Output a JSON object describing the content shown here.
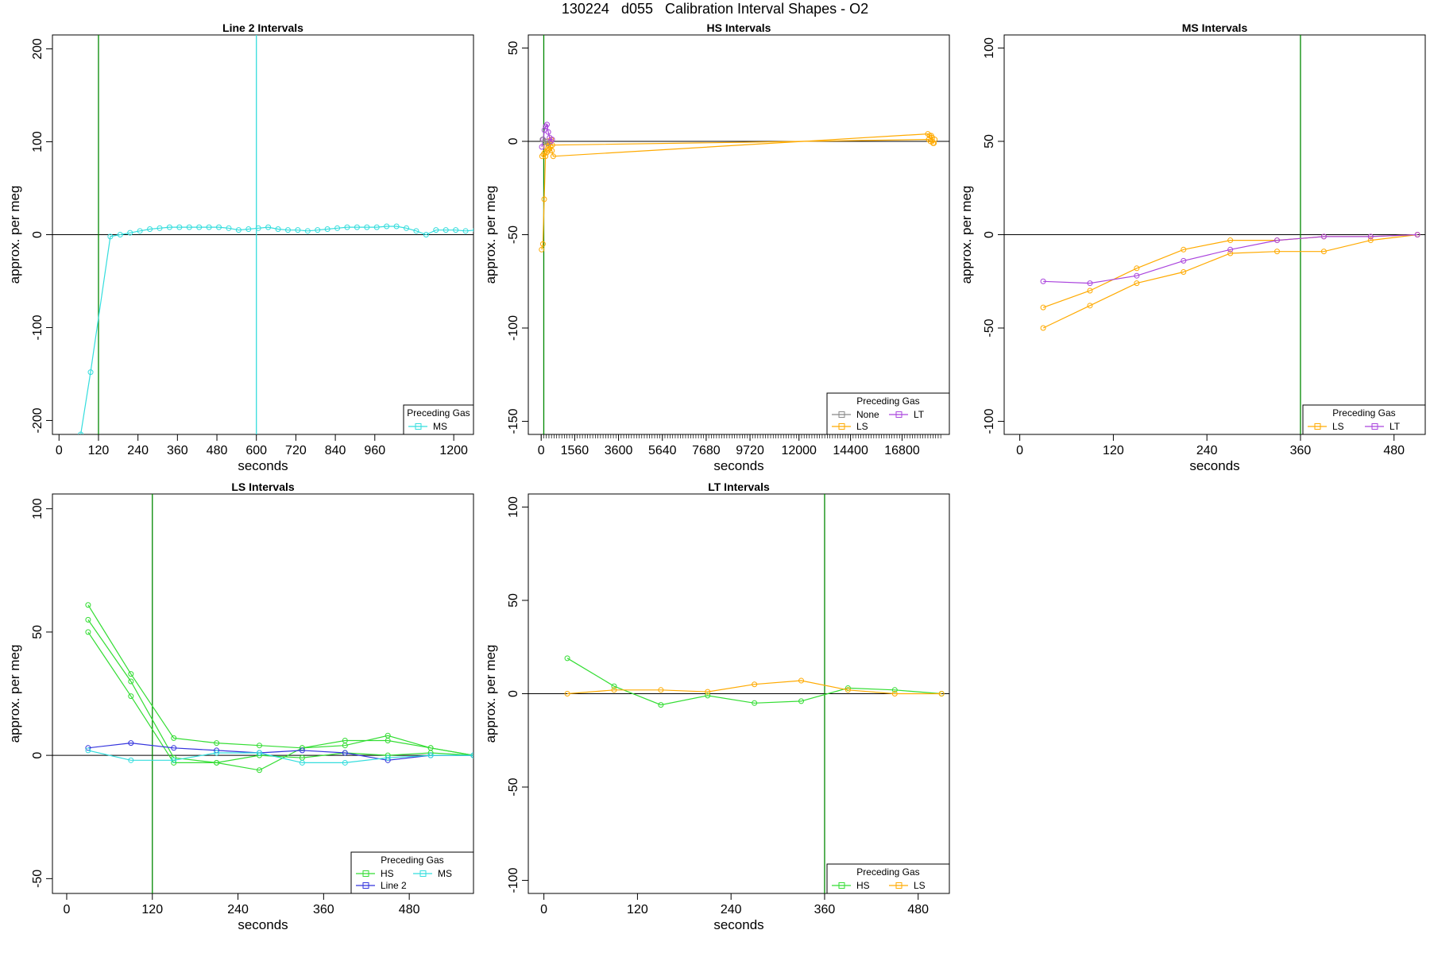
{
  "figure": {
    "title": "130224   d055   Calibration Interval Shapes - O2"
  },
  "colors": {
    "HS": "#33dd33",
    "LS": "#ffaa00",
    "LT": "#aa44dd",
    "MS": "#33dddd",
    "Line 2": "#3333dd",
    "None": "#888888",
    "axis": "#000000",
    "vline": "#008800"
  },
  "chart_data": [
    {
      "type": "line",
      "title": "Line 2 Intervals",
      "xlabel": "seconds",
      "ylabel": "approx. per meg",
      "xlim": [
        -20,
        1260
      ],
      "ylim": [
        -215,
        215
      ],
      "xticks": [
        0,
        120,
        240,
        360,
        480,
        600,
        720,
        840,
        960,
        1200
      ],
      "yticks": [
        -200,
        -100,
        0,
        100,
        200
      ],
      "hline": 0,
      "vlines": [
        {
          "x": 120,
          "color": "vline"
        },
        {
          "x": 600,
          "color": "MS"
        }
      ],
      "legend": {
        "title": "Preceding Gas",
        "position": "bottom-right",
        "columns": 1,
        "entries": [
          "MS"
        ]
      },
      "series": [
        {
          "name": "MS",
          "x": [
            66,
            96,
            156,
            186,
            216,
            246,
            276,
            306,
            336,
            366,
            396,
            426,
            456,
            486,
            516,
            546,
            576,
            606,
            636,
            666,
            696,
            726,
            756,
            786,
            816,
            846,
            876,
            906,
            936,
            966,
            996,
            1026,
            1056,
            1086,
            1116,
            1146,
            1176,
            1206,
            1236,
            1266
          ],
          "y": [
            -215,
            -148,
            -2,
            0,
            2,
            4,
            6,
            7,
            8,
            8,
            8,
            8,
            8,
            8,
            7,
            5,
            6,
            7,
            8,
            6,
            5,
            5,
            4,
            5,
            6,
            7,
            8,
            8,
            8,
            8,
            9,
            9,
            7,
            4,
            0,
            5,
            5,
            5,
            4,
            5
          ]
        }
      ]
    },
    {
      "type": "line",
      "title": "HS Intervals",
      "xlabel": "seconds",
      "ylabel": "approx. per meg",
      "xlim": [
        -600,
        19000
      ],
      "ylim": [
        -157,
        57
      ],
      "xticks": [
        0,
        1560,
        3600,
        5640,
        7680,
        9720,
        12000,
        14400,
        16800
      ],
      "yticks": [
        -150,
        -100,
        -50,
        0,
        50
      ],
      "minor_xtick_step": 120,
      "minor_xtick_range": [
        0,
        18600
      ],
      "hline": 0,
      "vlines": [
        {
          "x": 120,
          "color": "vline"
        }
      ],
      "legend": {
        "title": "Preceding Gas",
        "position": "bottom-right",
        "columns": 2,
        "entries": [
          "None",
          "LT",
          "LS"
        ]
      },
      "series": [
        {
          "name": "LS",
          "x": [
            20,
            80,
            140,
            200,
            260,
            320,
            380,
            440,
            500,
            560,
            18000,
            18080,
            18160,
            18240,
            18320
          ],
          "y": [
            -58,
            -55,
            -31,
            -8,
            -6,
            -5,
            -4,
            -3,
            -5,
            -8,
            4,
            3,
            3,
            -1,
            1
          ]
        },
        {
          "name": "LS",
          "x": [
            40,
            100,
            160,
            220,
            280,
            340,
            400,
            460,
            520,
            18040,
            18120,
            18200,
            18280
          ],
          "y": [
            -8,
            -7,
            -6,
            -3,
            0,
            -2,
            -1,
            1,
            -2,
            1,
            0,
            2,
            -1
          ]
        },
        {
          "name": "LT",
          "x": [
            30,
            90,
            150,
            210,
            270,
            330,
            390,
            450,
            510
          ],
          "y": [
            -3,
            1,
            6,
            8,
            9,
            5,
            2,
            0,
            1
          ]
        },
        {
          "name": "None",
          "x": [
            60,
            180,
            300
          ],
          "y": [
            1,
            0,
            -1
          ]
        }
      ]
    },
    {
      "type": "line",
      "title": "MS Intervals",
      "xlabel": "seconds",
      "ylabel": "approx. per meg",
      "xlim": [
        -20,
        520
      ],
      "ylim": [
        -107,
        107
      ],
      "xticks": [
        0,
        120,
        240,
        360,
        480
      ],
      "yticks": [
        -100,
        -50,
        0,
        50,
        100
      ],
      "hline": 0,
      "vlines": [
        {
          "x": 360,
          "color": "vline"
        }
      ],
      "legend": {
        "title": "Preceding Gas",
        "position": "bottom-right",
        "columns": 2,
        "entries": [
          "LS",
          "LT"
        ]
      },
      "series": [
        {
          "name": "LS",
          "x": [
            30,
            90,
            150,
            210,
            270,
            330,
            390,
            450,
            510
          ],
          "y": [
            -50,
            -38,
            -26,
            -20,
            -10,
            -9,
            -9,
            -3,
            0
          ]
        },
        {
          "name": "LS",
          "x": [
            30,
            90,
            150,
            210,
            270,
            330,
            390,
            450,
            510
          ],
          "y": [
            -39,
            -30,
            -18,
            -8,
            -3,
            -3,
            -1,
            -1,
            0
          ]
        },
        {
          "name": "LT",
          "x": [
            30,
            90,
            150,
            210,
            270,
            330,
            390,
            450,
            510
          ],
          "y": [
            -25,
            -26,
            -22,
            -14,
            -8,
            -3,
            -1,
            -1,
            0
          ]
        }
      ]
    },
    {
      "type": "line",
      "title": "LS Intervals",
      "xlabel": "seconds",
      "ylabel": "approx. per meg",
      "xlim": [
        -20,
        570
      ],
      "ylim": [
        -56,
        106
      ],
      "xticks": [
        0,
        120,
        240,
        360,
        480
      ],
      "yticks": [
        -50,
        0,
        50,
        100
      ],
      "hline": 0,
      "vlines": [
        {
          "x": 120,
          "color": "vline"
        }
      ],
      "legend": {
        "title": "Preceding Gas",
        "position": "bottom-right",
        "columns": 2,
        "entries": [
          "HS",
          "MS",
          "Line 2"
        ]
      },
      "series": [
        {
          "name": "HS",
          "x": [
            30,
            90,
            150,
            210,
            270,
            330,
            390,
            450,
            510,
            570
          ],
          "y": [
            61,
            33,
            7,
            5,
            4,
            3,
            6,
            6,
            3,
            0
          ]
        },
        {
          "name": "HS",
          "x": [
            30,
            90,
            150,
            210,
            270,
            330,
            390,
            450,
            510,
            570
          ],
          "y": [
            55,
            30,
            -1,
            -3,
            -6,
            3,
            4,
            8,
            3,
            0
          ]
        },
        {
          "name": "HS",
          "x": [
            30,
            90,
            150,
            210,
            270,
            330,
            390,
            450,
            510,
            570
          ],
          "y": [
            50,
            24,
            -3,
            -3,
            0,
            -1,
            1,
            0,
            1,
            0
          ]
        },
        {
          "name": "Line 2",
          "x": [
            30,
            90,
            150,
            210,
            270,
            330,
            390,
            450,
            510,
            570
          ],
          "y": [
            3,
            5,
            3,
            2,
            1,
            2,
            1,
            -2,
            0,
            0
          ]
        },
        {
          "name": "MS",
          "x": [
            30,
            90,
            150,
            210,
            270,
            330,
            390,
            450,
            510,
            570
          ],
          "y": [
            2,
            -2,
            -2,
            1,
            1,
            -3,
            -3,
            -1,
            0,
            0
          ]
        }
      ]
    },
    {
      "type": "line",
      "title": "LT Intervals",
      "xlabel": "seconds",
      "ylabel": "approx. per meg",
      "xlim": [
        -20,
        520
      ],
      "ylim": [
        -107,
        107
      ],
      "xticks": [
        0,
        120,
        240,
        360,
        480
      ],
      "yticks": [
        -100,
        -50,
        0,
        50,
        100
      ],
      "hline": 0,
      "vlines": [
        {
          "x": 360,
          "color": "vline"
        }
      ],
      "legend": {
        "title": "Preceding Gas",
        "position": "bottom-right",
        "columns": 2,
        "entries": [
          "HS",
          "LS"
        ]
      },
      "series": [
        {
          "name": "HS",
          "x": [
            30,
            90,
            150,
            210,
            270,
            330,
            390,
            450,
            510
          ],
          "y": [
            19,
            4,
            -6,
            -1,
            -5,
            -4,
            3,
            2,
            0
          ]
        },
        {
          "name": "LS",
          "x": [
            30,
            90,
            150,
            210,
            270,
            330,
            390,
            450,
            510
          ],
          "y": [
            0,
            2,
            2,
            1,
            5,
            7,
            2,
            0,
            0
          ]
        }
      ]
    }
  ]
}
